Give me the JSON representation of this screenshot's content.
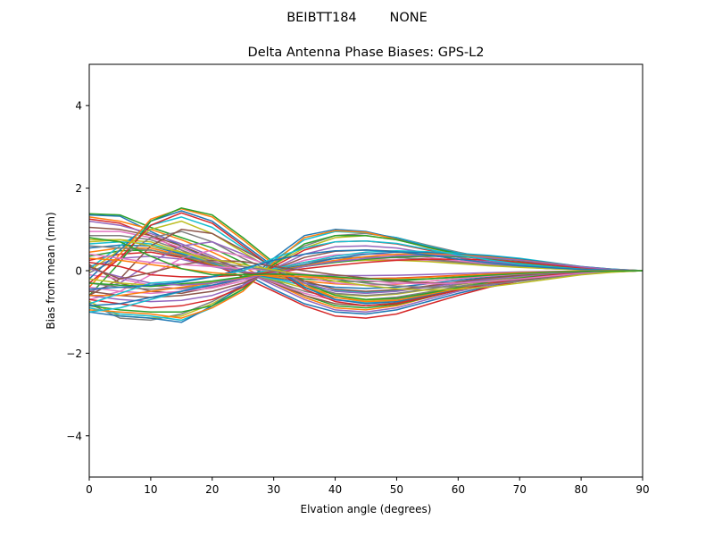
{
  "chart_data": {
    "type": "line",
    "suptitle": "BEIBTT184        NONE",
    "title": "Delta Antenna Phase Biases: GPS-L2",
    "xlabel": "Elvation angle (degrees)",
    "ylabel": "Bias from mean (mm)",
    "xlim": [
      0,
      90
    ],
    "ylim": [
      -5,
      5
    ],
    "xticks": [
      0,
      10,
      20,
      30,
      40,
      50,
      60,
      70,
      80,
      90
    ],
    "yticks": [
      -4,
      -2,
      0,
      2,
      4
    ],
    "ytick_labels": [
      "−4",
      "−2",
      "0",
      "2",
      "4"
    ],
    "grid": false,
    "legend": "none",
    "colors": [
      "#1f77b4",
      "#ff7f0e",
      "#2ca02c",
      "#d62728",
      "#9467bd",
      "#8c564b",
      "#e377c2",
      "#7f7f7f",
      "#bcbd22",
      "#17becf"
    ],
    "x": [
      0,
      5,
      10,
      15,
      20,
      25,
      30,
      35,
      40,
      45,
      50,
      55,
      60,
      65,
      70,
      75,
      80,
      85,
      90
    ],
    "series": [
      {
        "values": [
          1.35,
          1.32,
          0.95,
          0.6,
          0.25,
          -0.05,
          -0.45,
          -0.8,
          -1.0,
          -1.05,
          -0.95,
          -0.75,
          -0.55,
          -0.38,
          -0.25,
          -0.15,
          -0.08,
          -0.03,
          0
        ]
      },
      {
        "values": [
          1.3,
          1.2,
          1.0,
          0.75,
          0.45,
          0.1,
          -0.3,
          -0.65,
          -0.9,
          -0.95,
          -0.85,
          -0.65,
          -0.45,
          -0.3,
          -0.2,
          -0.12,
          -0.06,
          -0.02,
          0
        ]
      },
      {
        "values": [
          1.38,
          1.35,
          1.05,
          0.8,
          0.55,
          0.2,
          -0.2,
          -0.6,
          -0.85,
          -0.9,
          -0.82,
          -0.65,
          -0.47,
          -0.32,
          -0.2,
          -0.12,
          -0.06,
          -0.02,
          0
        ]
      },
      {
        "values": [
          1.25,
          1.15,
          0.85,
          0.5,
          0.15,
          -0.15,
          -0.5,
          -0.85,
          -1.1,
          -1.15,
          -1.05,
          -0.82,
          -0.6,
          -0.4,
          -0.25,
          -0.15,
          -0.08,
          -0.03,
          0
        ]
      },
      {
        "values": [
          1.2,
          1.1,
          0.9,
          0.65,
          0.35,
          0.0,
          -0.35,
          -0.7,
          -0.95,
          -1.0,
          -0.9,
          -0.7,
          -0.5,
          -0.35,
          -0.22,
          -0.13,
          -0.07,
          -0.02,
          0
        ]
      },
      {
        "values": [
          1.05,
          1.0,
          0.85,
          0.6,
          0.3,
          0.0,
          -0.3,
          -0.6,
          -0.8,
          -0.85,
          -0.78,
          -0.62,
          -0.45,
          -0.3,
          -0.19,
          -0.11,
          -0.05,
          -0.02,
          0
        ]
      },
      {
        "values": [
          0.95,
          0.95,
          0.8,
          0.55,
          0.25,
          -0.02,
          -0.28,
          -0.55,
          -0.72,
          -0.76,
          -0.7,
          -0.56,
          -0.41,
          -0.28,
          -0.17,
          -0.1,
          -0.05,
          -0.02,
          0
        ]
      },
      {
        "values": [
          0.85,
          0.85,
          0.75,
          0.5,
          0.22,
          -0.03,
          -0.25,
          -0.5,
          -0.65,
          -0.7,
          -0.64,
          -0.52,
          -0.38,
          -0.26,
          -0.16,
          -0.09,
          -0.04,
          -0.01,
          0
        ]
      },
      {
        "values": [
          0.75,
          0.75,
          0.7,
          0.45,
          0.2,
          -0.04,
          -0.22,
          -0.42,
          -0.57,
          -0.62,
          -0.57,
          -0.46,
          -0.34,
          -0.23,
          -0.14,
          -0.08,
          -0.04,
          -0.01,
          0
        ]
      },
      {
        "values": [
          0.65,
          0.7,
          0.65,
          0.42,
          0.18,
          -0.05,
          -0.2,
          -0.36,
          -0.48,
          -0.52,
          -0.48,
          -0.39,
          -0.28,
          -0.19,
          -0.12,
          -0.07,
          -0.03,
          -0.01,
          0
        ]
      },
      {
        "values": [
          0.55,
          0.62,
          0.6,
          0.4,
          0.16,
          -0.05,
          -0.17,
          -0.3,
          -0.4,
          -0.43,
          -0.4,
          -0.32,
          -0.23,
          -0.16,
          -0.1,
          -0.06,
          -0.03,
          -0.01,
          0
        ]
      },
      {
        "values": [
          0.45,
          0.55,
          0.55,
          0.37,
          0.14,
          -0.05,
          -0.15,
          -0.25,
          -0.32,
          -0.35,
          -0.33,
          -0.26,
          -0.19,
          -0.13,
          -0.08,
          -0.05,
          -0.02,
          -0.01,
          0
        ]
      },
      {
        "values": [
          0.35,
          0.48,
          0.5,
          0.34,
          0.12,
          -0.05,
          -0.12,
          -0.2,
          -0.25,
          -0.27,
          -0.25,
          -0.2,
          -0.15,
          -0.1,
          -0.06,
          -0.04,
          -0.02,
          -0.01,
          0
        ]
      },
      {
        "values": [
          0.25,
          0.4,
          0.45,
          0.32,
          0.11,
          -0.04,
          -0.1,
          -0.15,
          -0.18,
          -0.19,
          -0.18,
          -0.15,
          -0.11,
          -0.08,
          -0.05,
          -0.03,
          -0.01,
          0,
          0
        ]
      },
      {
        "values": [
          0.1,
          0.3,
          0.35,
          0.28,
          0.1,
          -0.03,
          -0.07,
          -0.1,
          -0.12,
          -0.12,
          -0.11,
          -0.09,
          -0.07,
          -0.05,
          -0.03,
          -0.02,
          -0.01,
          0,
          0
        ]
      },
      {
        "values": [
          0.15,
          -0.3,
          -0.5,
          -0.55,
          -0.4,
          -0.2,
          0.05,
          0.2,
          0.3,
          0.33,
          0.32,
          0.28,
          0.22,
          0.16,
          0.11,
          0.06,
          0.03,
          0.01,
          0
        ]
      },
      {
        "values": [
          -0.1,
          -0.2,
          -0.35,
          -0.45,
          -0.38,
          -0.2,
          0.0,
          0.15,
          0.25,
          0.28,
          0.27,
          0.24,
          0.19,
          0.14,
          0.09,
          0.05,
          0.03,
          0.01,
          0
        ]
      },
      {
        "values": [
          -0.05,
          0.3,
          0.8,
          0.95,
          0.7,
          0.3,
          -0.05,
          -0.35,
          -0.55,
          -0.6,
          -0.55,
          -0.45,
          -0.33,
          -0.22,
          -0.14,
          -0.08,
          -0.04,
          -0.01,
          0
        ]
      },
      {
        "values": [
          0.0,
          0.5,
          1.0,
          1.2,
          0.9,
          0.45,
          0.0,
          -0.4,
          -0.65,
          -0.72,
          -0.68,
          -0.55,
          -0.4,
          -0.27,
          -0.17,
          -0.1,
          -0.05,
          -0.02,
          0
        ]
      },
      {
        "values": [
          0.05,
          0.6,
          1.1,
          1.3,
          1.05,
          0.55,
          0.05,
          -0.4,
          -0.7,
          -0.78,
          -0.72,
          -0.58,
          -0.42,
          -0.28,
          -0.18,
          -0.1,
          -0.05,
          -0.02,
          0
        ]
      },
      {
        "values": [
          -0.2,
          0.5,
          1.2,
          1.45,
          1.2,
          0.65,
          0.1,
          -0.4,
          -0.7,
          -0.8,
          -0.75,
          -0.6,
          -0.44,
          -0.3,
          -0.19,
          -0.11,
          -0.05,
          -0.02,
          0
        ]
      },
      {
        "values": [
          -0.4,
          0.4,
          1.25,
          1.5,
          1.3,
          0.75,
          0.15,
          -0.35,
          -0.65,
          -0.75,
          -0.72,
          -0.58,
          -0.43,
          -0.29,
          -0.18,
          -0.1,
          -0.05,
          -0.02,
          0
        ]
      },
      {
        "values": [
          -0.6,
          0.2,
          1.2,
          1.52,
          1.35,
          0.8,
          0.2,
          -0.3,
          -0.6,
          -0.7,
          -0.67,
          -0.55,
          -0.41,
          -0.28,
          -0.18,
          -0.1,
          -0.05,
          -0.02,
          0
        ]
      },
      {
        "values": [
          -0.3,
          0.3,
          1.1,
          1.4,
          1.15,
          0.6,
          0.05,
          -0.45,
          -0.75,
          -0.85,
          -0.8,
          -0.64,
          -0.47,
          -0.32,
          -0.2,
          -0.11,
          -0.05,
          -0.02,
          0
        ]
      },
      {
        "values": [
          -0.5,
          -0.3,
          0.2,
          0.6,
          0.7,
          0.4,
          0.05,
          -0.3,
          -0.5,
          -0.55,
          -0.5,
          -0.4,
          -0.3,
          -0.2,
          -0.13,
          -0.07,
          -0.04,
          -0.01,
          0
        ]
      },
      {
        "values": [
          -0.6,
          -0.2,
          0.6,
          1.0,
          0.9,
          0.5,
          0.1,
          -0.25,
          -0.45,
          -0.5,
          -0.46,
          -0.37,
          -0.27,
          -0.18,
          -0.11,
          -0.06,
          -0.03,
          -0.01,
          0
        ]
      },
      {
        "values": [
          -0.7,
          -0.5,
          -0.1,
          0.3,
          0.5,
          0.35,
          0.1,
          -0.15,
          -0.3,
          -0.35,
          -0.32,
          -0.26,
          -0.19,
          -0.13,
          -0.08,
          -0.05,
          -0.02,
          -0.01,
          0
        ]
      },
      {
        "values": [
          -0.8,
          -1.15,
          -1.2,
          -1.05,
          -0.75,
          -0.35,
          0.2,
          0.6,
          0.85,
          0.9,
          0.8,
          0.62,
          0.45,
          0.3,
          0.19,
          0.11,
          0.05,
          0.02,
          0
        ]
      },
      {
        "values": [
          -0.75,
          -1.1,
          -1.15,
          -1.1,
          -0.8,
          -0.4,
          0.15,
          0.55,
          0.8,
          0.85,
          0.75,
          0.58,
          0.42,
          0.28,
          0.18,
          0.1,
          0.05,
          0.02,
          0
        ]
      },
      {
        "values": [
          -0.9,
          -1.05,
          -1.1,
          -1.2,
          -0.9,
          -0.45,
          0.25,
          0.75,
          0.95,
          0.92,
          0.8,
          0.6,
          0.43,
          0.29,
          0.18,
          0.1,
          0.05,
          0.02,
          0
        ]
      },
      {
        "values": [
          -1.0,
          -1.1,
          -1.15,
          -1.25,
          -0.85,
          -0.35,
          0.3,
          0.85,
          1.0,
          0.95,
          0.78,
          0.58,
          0.42,
          0.28,
          0.17,
          0.1,
          0.05,
          0.02,
          0
        ]
      },
      {
        "values": [
          -0.95,
          -1.0,
          -1.05,
          -1.15,
          -0.9,
          -0.5,
          0.2,
          0.8,
          0.97,
          0.93,
          0.76,
          0.56,
          0.4,
          0.27,
          0.17,
          0.09,
          0.04,
          0.01,
          0
        ]
      },
      {
        "values": [
          -0.85,
          -0.95,
          -1.0,
          -1.0,
          -0.85,
          -0.45,
          0.15,
          0.65,
          0.85,
          0.85,
          0.75,
          0.57,
          0.41,
          0.27,
          0.17,
          0.1,
          0.05,
          0.02,
          0
        ]
      },
      {
        "values": [
          -0.7,
          -0.8,
          -0.9,
          -0.85,
          -0.7,
          -0.4,
          0.1,
          0.5,
          0.7,
          0.72,
          0.65,
          0.5,
          0.37,
          0.25,
          0.16,
          0.09,
          0.04,
          0.01,
          0
        ]
      },
      {
        "values": [
          -0.6,
          -0.7,
          -0.75,
          -0.72,
          -0.6,
          -0.35,
          0.05,
          0.4,
          0.58,
          0.6,
          0.55,
          0.43,
          0.32,
          0.22,
          0.14,
          0.08,
          0.04,
          0.01,
          0
        ]
      },
      {
        "values": [
          -0.5,
          -0.6,
          -0.65,
          -0.6,
          -0.5,
          -0.3,
          0.03,
          0.32,
          0.47,
          0.5,
          0.47,
          0.38,
          0.28,
          0.19,
          0.12,
          0.07,
          0.03,
          0.01,
          0
        ]
      },
      {
        "values": [
          -0.4,
          -0.5,
          -0.55,
          -0.5,
          -0.42,
          -0.25,
          0.02,
          0.25,
          0.38,
          0.41,
          0.39,
          0.32,
          0.24,
          0.17,
          0.11,
          0.06,
          0.03,
          0.01,
          0
        ]
      },
      {
        "values": [
          -0.3,
          -0.4,
          -0.45,
          -0.42,
          -0.35,
          -0.2,
          0.02,
          0.2,
          0.3,
          0.33,
          0.32,
          0.27,
          0.2,
          0.14,
          0.09,
          0.05,
          0.03,
          0.01,
          0
        ]
      },
      {
        "values": [
          -0.2,
          -0.3,
          -0.35,
          -0.33,
          -0.28,
          -0.16,
          0.01,
          0.15,
          0.22,
          0.25,
          0.25,
          0.22,
          0.17,
          0.12,
          0.08,
          0.05,
          0.02,
          0.01,
          0
        ]
      },
      {
        "values": [
          -1.0,
          -0.9,
          -0.7,
          -0.5,
          -0.3,
          -0.15,
          0.05,
          0.2,
          0.35,
          0.45,
          0.48,
          0.46,
          0.42,
          0.37,
          0.3,
          0.2,
          0.1,
          0.04,
          0
        ]
      },
      {
        "values": [
          -0.85,
          -0.8,
          -0.65,
          -0.5,
          -0.35,
          -0.2,
          0.0,
          0.15,
          0.3,
          0.4,
          0.45,
          0.44,
          0.4,
          0.35,
          0.28,
          0.19,
          0.1,
          0.04,
          0
        ]
      },
      {
        "values": [
          -0.6,
          -0.6,
          -0.5,
          -0.4,
          -0.3,
          -0.18,
          -0.02,
          0.12,
          0.25,
          0.34,
          0.4,
          0.41,
          0.38,
          0.33,
          0.26,
          0.18,
          0.09,
          0.03,
          0
        ]
      },
      {
        "values": [
          -0.3,
          -0.35,
          -0.38,
          -0.32,
          -0.25,
          -0.15,
          -0.03,
          0.1,
          0.2,
          0.28,
          0.33,
          0.35,
          0.34,
          0.3,
          0.24,
          0.16,
          0.08,
          0.03,
          0
        ]
      },
      {
        "values": [
          0.2,
          0.1,
          -0.1,
          -0.15,
          -0.15,
          -0.1,
          -0.04,
          0.05,
          0.13,
          0.2,
          0.25,
          0.28,
          0.28,
          0.26,
          0.21,
          0.14,
          0.07,
          0.02,
          0
        ]
      },
      {
        "values": [
          0.05,
          -0.15,
          -0.3,
          -0.35,
          -0.3,
          -0.2,
          -0.05,
          0.1,
          0.22,
          0.3,
          0.36,
          0.38,
          0.36,
          0.31,
          0.25,
          0.17,
          0.09,
          0.03,
          0
        ]
      },
      {
        "values": [
          0.1,
          -0.2,
          -0.05,
          0.15,
          0.25,
          0.22,
          0.1,
          0.0,
          -0.1,
          -0.18,
          -0.25,
          -0.3,
          -0.3,
          -0.27,
          -0.22,
          -0.15,
          -0.08,
          -0.03,
          0
        ]
      },
      {
        "values": [
          0.4,
          0.3,
          0.2,
          0.15,
          0.1,
          0.05,
          0.0,
          -0.08,
          -0.16,
          -0.24,
          -0.3,
          -0.32,
          -0.3,
          -0.26,
          -0.2,
          -0.13,
          -0.07,
          -0.02,
          0
        ]
      },
      {
        "values": [
          0.6,
          0.55,
          0.5,
          0.35,
          0.2,
          0.1,
          0.0,
          -0.1,
          -0.2,
          -0.3,
          -0.37,
          -0.4,
          -0.38,
          -0.33,
          -0.26,
          -0.17,
          -0.09,
          -0.03,
          0
        ]
      },
      {
        "values": [
          0.7,
          0.75,
          0.6,
          0.45,
          0.28,
          0.15,
          0.02,
          -0.12,
          -0.25,
          -0.36,
          -0.44,
          -0.47,
          -0.45,
          -0.39,
          -0.3,
          -0.2,
          -0.1,
          -0.04,
          0
        ]
      },
      {
        "values": [
          -0.8,
          -0.55,
          -0.3,
          -0.25,
          -0.15,
          0.0,
          0.3,
          0.55,
          0.7,
          0.72,
          0.66,
          0.52,
          0.38,
          0.26,
          0.16,
          0.09,
          0.04,
          0.01,
          0
        ]
      },
      {
        "values": [
          -0.45,
          -0.4,
          -0.35,
          -0.28,
          -0.15,
          0.05,
          0.25,
          0.4,
          0.48,
          0.5,
          0.46,
          0.38,
          0.28,
          0.19,
          0.12,
          0.07,
          0.03,
          0.01,
          0
        ]
      },
      {
        "values": [
          0.3,
          0.25,
          0.15,
          0.05,
          -0.05,
          -0.1,
          -0.12,
          -0.15,
          -0.18,
          -0.2,
          -0.19,
          -0.16,
          -0.12,
          -0.08,
          -0.05,
          -0.03,
          -0.01,
          0,
          0
        ]
      },
      {
        "values": [
          0.8,
          0.7,
          0.35,
          0.05,
          -0.1,
          -0.1,
          -0.08,
          -0.1,
          -0.15,
          -0.2,
          -0.22,
          -0.2,
          -0.16,
          -0.11,
          -0.07,
          -0.04,
          -0.02,
          -0.01,
          0
        ]
      }
    ]
  }
}
